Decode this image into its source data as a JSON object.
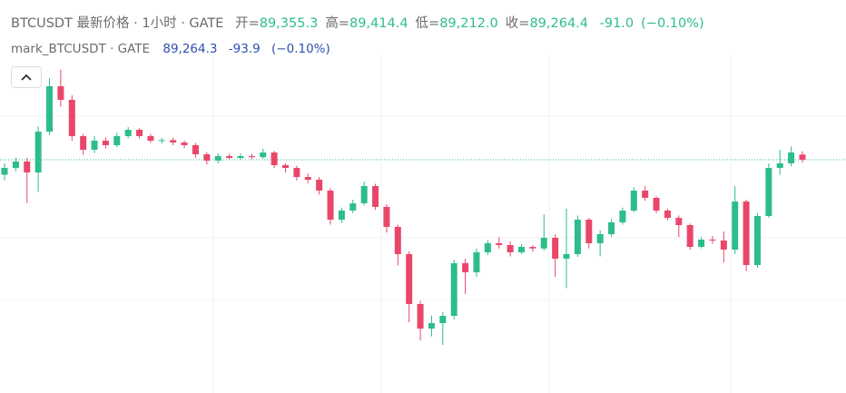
{
  "chart_data": {
    "type": "candlestick",
    "title": "BTCUSDT 最新价格 · 1小时 · GATE",
    "header_values": [
      {
        "label": "开=",
        "value": "89,355.3"
      },
      {
        "label": "高=",
        "value": "89,414.4"
      },
      {
        "label": "低=",
        "value": "89,212.0"
      },
      {
        "label": "收=",
        "value": "89,264.4"
      }
    ],
    "change": "-91.0",
    "change_pct": "(−0.10%)",
    "mark_legend": {
      "name": "mark_BTCUSDT · GATE",
      "value": "89,264.3",
      "change": "-93.9",
      "change_pct": "(−0.10%)"
    },
    "up_color": "#2dbd8b",
    "down_color": "#e9476a",
    "ylim": [
      85200,
      91120
    ],
    "open": [
      89000,
      89120,
      89232,
      89040,
      89760,
      90560,
      90320,
      89680,
      89440,
      89600,
      89520,
      89680,
      89792,
      89680,
      89600,
      89610,
      89568,
      89520,
      89360,
      89248,
      89328,
      89296,
      89328,
      89310,
      89392,
      89168,
      89120,
      88960,
      88912,
      88720,
      88208,
      88368,
      88496,
      88800,
      88432,
      88080,
      87600,
      86720,
      86288,
      86384,
      86512,
      87440,
      87280,
      87632,
      87792,
      87760,
      87632,
      87728,
      87700,
      87888,
      87520,
      87600,
      88208,
      87792,
      87952,
      88160,
      88368,
      88720,
      88592,
      88368,
      88240,
      88112,
      87728,
      87856,
      87840,
      87680,
      88528,
      87408,
      88272,
      89120,
      89200,
      89355.3
    ],
    "high": [
      89200,
      89300,
      89300,
      89850,
      90700,
      90850,
      90400,
      89720,
      89680,
      89660,
      89740,
      89840,
      89820,
      89720,
      89650,
      89650,
      89600,
      89560,
      89400,
      89380,
      89370,
      89380,
      89370,
      89460,
      89420,
      89200,
      89160,
      89020,
      88960,
      88760,
      88420,
      88560,
      88880,
      88840,
      88480,
      88120,
      87650,
      86780,
      86520,
      86580,
      87500,
      87520,
      87700,
      87850,
      87900,
      87820,
      87780,
      87760,
      88300,
      87950,
      88400,
      88280,
      88240,
      88020,
      88220,
      88420,
      88780,
      88800,
      88620,
      88400,
      88280,
      88140,
      87900,
      87920,
      88000,
      88800,
      88560,
      88320,
      89200,
      89440,
      89500,
      89414.4
    ],
    "low": [
      88900,
      89060,
      88500,
      88700,
      89700,
      90200,
      89600,
      89350,
      89380,
      89460,
      89480,
      89640,
      89640,
      89560,
      89550,
      89520,
      89470,
      89300,
      89180,
      89200,
      89260,
      89260,
      89270,
      89280,
      89120,
      89040,
      88900,
      88850,
      88650,
      88120,
      88150,
      88320,
      88460,
      88380,
      87980,
      87400,
      86400,
      86080,
      86150,
      86000,
      86450,
      86900,
      87200,
      87580,
      87700,
      87560,
      87600,
      87640,
      87660,
      87200,
      87000,
      87550,
      87700,
      87560,
      87900,
      88120,
      88340,
      88540,
      88320,
      88200,
      87900,
      87680,
      87700,
      87780,
      87450,
      87600,
      87300,
      87360,
      88240,
      89000,
      89150,
      89212
    ],
    "close": [
      89120,
      89232,
      89040,
      89760,
      90560,
      90320,
      89680,
      89440,
      89600,
      89520,
      89680,
      89792,
      89680,
      89600,
      89610,
      89568,
      89520,
      89360,
      89248,
      89328,
      89296,
      89328,
      89310,
      89392,
      89168,
      89120,
      88960,
      88912,
      88720,
      88208,
      88368,
      88496,
      88800,
      88432,
      88080,
      87600,
      86720,
      86288,
      86384,
      86512,
      87440,
      87280,
      87632,
      87792,
      87760,
      87632,
      87728,
      87700,
      87888,
      87520,
      87600,
      88208,
      87792,
      87952,
      88160,
      88368,
      88720,
      88592,
      88368,
      88240,
      88112,
      87728,
      87856,
      87840,
      87680,
      88528,
      87408,
      88272,
      89120,
      89200,
      89392,
      89264.4
    ]
  }
}
